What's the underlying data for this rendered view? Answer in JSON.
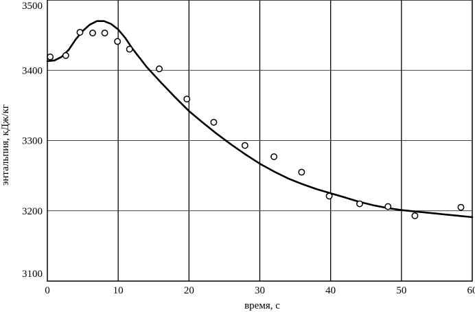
{
  "chart_data": {
    "type": "scatter",
    "xlabel": "время, с",
    "ylabel": "энтальпия, кДж/кг",
    "xlim": [
      0,
      60
    ],
    "ylim": [
      3100,
      3500
    ],
    "x_ticks": [
      0,
      10,
      20,
      30,
      40,
      50,
      60
    ],
    "y_ticks": [
      3100,
      3200,
      3300,
      3400,
      3500
    ],
    "x_tick_labels": [
      "0",
      "10",
      "20",
      "30",
      "40",
      "50",
      "60"
    ],
    "y_tick_labels": [
      "3100",
      "3200",
      "3300",
      "3400",
      "3500"
    ],
    "grid": true,
    "series": [
      {
        "type": "scatter",
        "marker": "open-circle",
        "x": [
          0.4,
          2.6,
          4.6,
          6.4,
          8.1,
          9.9,
          11.6,
          15.8,
          19.7,
          23.5,
          27.9,
          32.0,
          35.9,
          39.8,
          44.1,
          48.1,
          51.9,
          58.4
        ],
        "y": [
          3419,
          3421,
          3454,
          3453,
          3453,
          3441,
          3430,
          3402,
          3359,
          3326,
          3293,
          3277,
          3255,
          3221,
          3210,
          3206,
          3193,
          3205
        ]
      },
      {
        "type": "line",
        "x": [
          0,
          1,
          2,
          3,
          4,
          5,
          6,
          7,
          7.6,
          8,
          9,
          10,
          11,
          12,
          13,
          14,
          16,
          18,
          20,
          22,
          24,
          26,
          28,
          30,
          32,
          34,
          36,
          38,
          40,
          42,
          44,
          46,
          48,
          50,
          52,
          54,
          56,
          58,
          60
        ],
        "y": [
          3413,
          3414,
          3419,
          3429,
          3444,
          3456,
          3465,
          3470,
          3470,
          3470,
          3466,
          3458,
          3446,
          3431,
          3418,
          3405,
          3383,
          3362,
          3342,
          3325,
          3309,
          3294,
          3280,
          3267,
          3256,
          3246,
          3238,
          3231,
          3225,
          3219,
          3213,
          3208,
          3204,
          3201,
          3199,
          3197,
          3195,
          3193,
          3191
        ]
      }
    ]
  }
}
